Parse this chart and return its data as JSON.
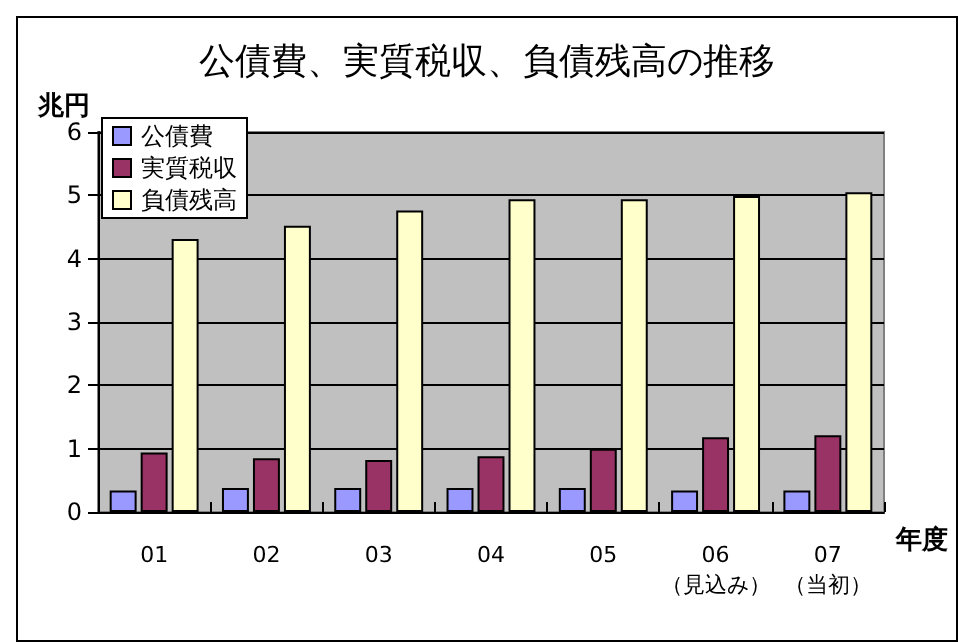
{
  "chart_data": {
    "type": "bar",
    "title": "公債費、実質税収、負債残高の推移",
    "ylabel": "兆円",
    "xlabel": "年度",
    "categories": [
      "01",
      "02",
      "03",
      "04",
      "05",
      "06\n（見込み）",
      "07\n（当初）"
    ],
    "series": [
      {
        "name": "公債費",
        "color": "#9999ff",
        "values": [
          0.34,
          0.38,
          0.38,
          0.38,
          0.38,
          0.34,
          0.34
        ]
      },
      {
        "name": "実質税収",
        "color": "#993366",
        "values": [
          0.94,
          0.85,
          0.82,
          0.88,
          1.0,
          1.18,
          1.21
        ]
      },
      {
        "name": "負債残高",
        "color": "#ffffcc",
        "values": [
          4.31,
          4.52,
          4.76,
          4.94,
          4.94,
          4.99,
          5.05
        ]
      }
    ],
    "ylim": [
      0,
      6
    ],
    "yticks": [
      0,
      1,
      2,
      3,
      4,
      5,
      6
    ],
    "grid": "y",
    "legend": "top left"
  }
}
